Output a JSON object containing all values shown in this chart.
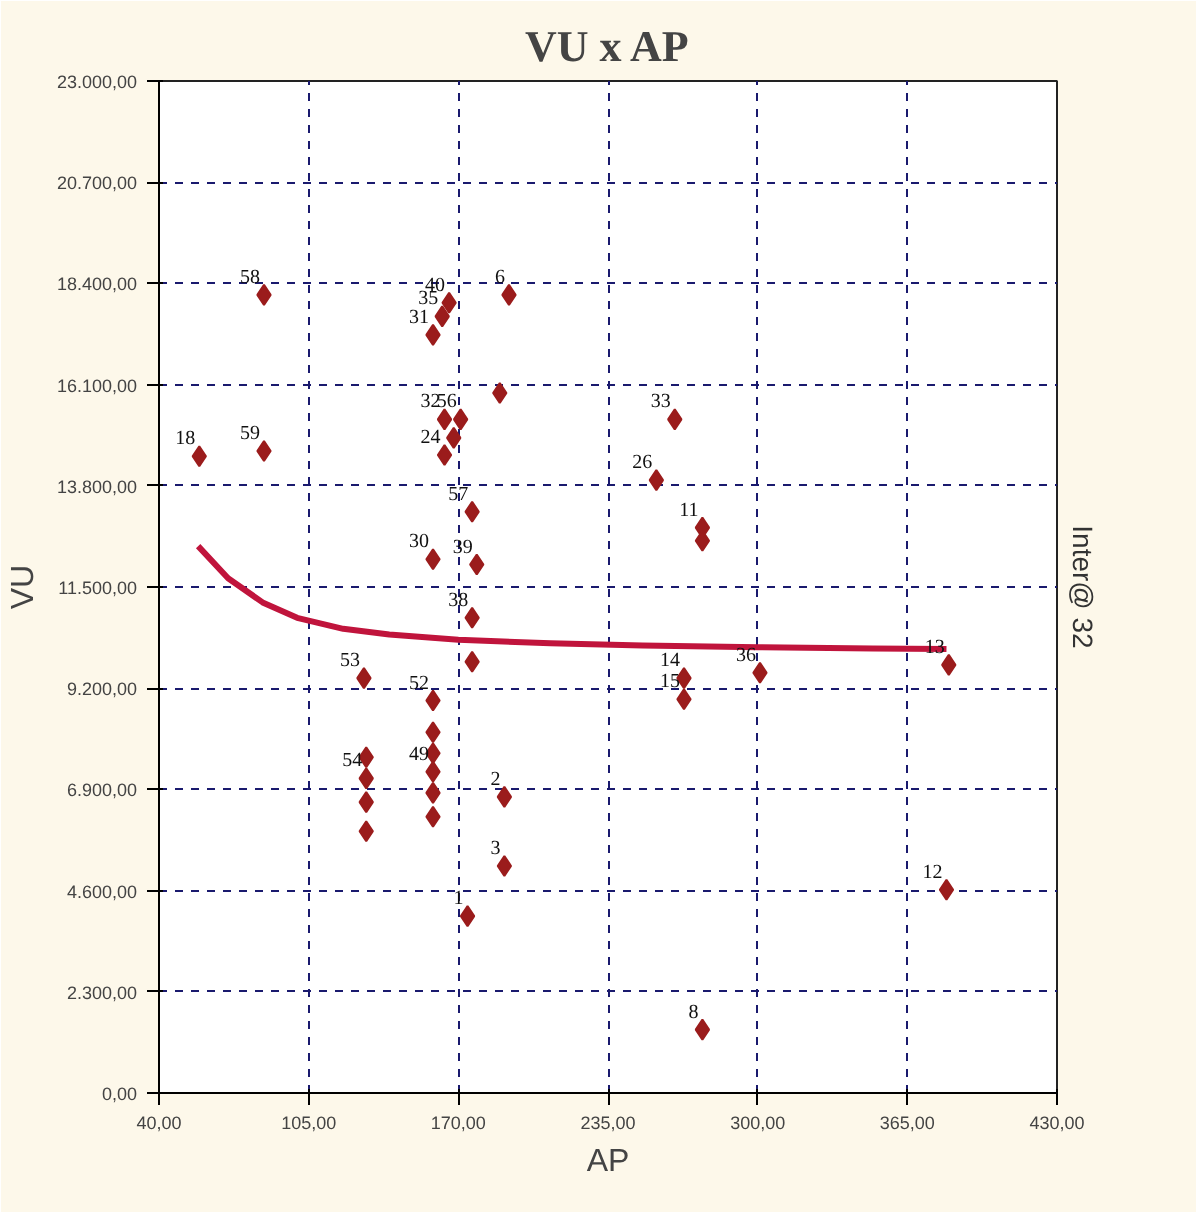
{
  "chart_data": {
    "type": "scatter",
    "title": "VU x AP",
    "xlabel": "AP",
    "ylabel": "VU",
    "xlim": [
      40,
      430
    ],
    "ylim": [
      0,
      23000
    ],
    "xticks": [
      {
        "value": 40,
        "label": "40,00"
      },
      {
        "value": 105,
        "label": "105,00"
      },
      {
        "value": 170,
        "label": "170,00"
      },
      {
        "value": 235,
        "label": "235,00"
      },
      {
        "value": 300,
        "label": "300,00"
      },
      {
        "value": 365,
        "label": "365,00"
      },
      {
        "value": 430,
        "label": "430,00"
      }
    ],
    "yticks": [
      {
        "value": 0,
        "label": "0,00"
      },
      {
        "value": 2300,
        "label": "2.300,00"
      },
      {
        "value": 4600,
        "label": "4.600,00"
      },
      {
        "value": 6900,
        "label": "6.900,00"
      },
      {
        "value": 9200,
        "label": "9.200,00"
      },
      {
        "value": 11500,
        "label": "11.500,00"
      },
      {
        "value": 13800,
        "label": "13.800,00"
      },
      {
        "value": 16100,
        "label": "16.100,00"
      },
      {
        "value": 18400,
        "label": "18.400,00"
      },
      {
        "value": 20700,
        "label": "20.700,00"
      },
      {
        "value": 23000,
        "label": "23.000,00"
      }
    ],
    "grid": true,
    "marker": "diamond",
    "series": [
      {
        "color": "#9b1c1c",
        "x": [
          57.5,
          85.6,
          85.6,
          192,
          166,
          163,
          159,
          188,
          164,
          171,
          168,
          164,
          176,
          159,
          178,
          176,
          176,
          129,
          159,
          159,
          159,
          159,
          159,
          159,
          130,
          130,
          130,
          130,
          190,
          190,
          174,
          264,
          256,
          276,
          276,
          268,
          268,
          301,
          383,
          382,
          276
        ],
        "values": [
          14470,
          14590,
          18140,
          18140,
          17960,
          17650,
          17230,
          15910,
          15310,
          15310,
          14890,
          14500,
          13210,
          12130,
          12010,
          10800,
          9800,
          9430,
          8920,
          8200,
          7720,
          7300,
          6820,
          6280,
          7630,
          7150,
          6610,
          5950,
          6730,
          5160,
          4020,
          15310,
          13930,
          12850,
          12550,
          9430,
          8950,
          9550,
          9730,
          4620,
          1440
        ]
      },
      {
        "type": "line",
        "marker": "none",
        "color": "#c0143c",
        "x": [
          57,
          70,
          85,
          100,
          120,
          140,
          170,
          210,
          250,
          300,
          350,
          382
        ],
        "values": [
          12430,
          11700,
          11150,
          10800,
          10550,
          10420,
          10300,
          10220,
          10170,
          10130,
          10100,
          10090
        ]
      }
    ],
    "annotations": [
      {
        "text": "18",
        "x": 57.5,
        "y": 14470
      },
      {
        "text": "59",
        "x": 85.6,
        "y": 14590
      },
      {
        "text": "58",
        "x": 85.6,
        "y": 18140
      },
      {
        "text": "6",
        "x": 192,
        "y": 18140
      },
      {
        "text": "40",
        "x": 166,
        "y": 17960
      },
      {
        "text": "35",
        "x": 163,
        "y": 17650
      },
      {
        "text": "31",
        "x": 159,
        "y": 17230
      },
      {
        "text": "56",
        "x": 171,
        "y": 15310
      },
      {
        "text": "32",
        "x": 164,
        "y": 15310
      },
      {
        "text": "24",
        "x": 164,
        "y": 14500
      },
      {
        "text": "57",
        "x": 176,
        "y": 13210
      },
      {
        "text": "30",
        "x": 159,
        "y": 12130
      },
      {
        "text": "39",
        "x": 178,
        "y": 12010
      },
      {
        "text": "38",
        "x": 176,
        "y": 10800
      },
      {
        "text": "53",
        "x": 129,
        "y": 9430
      },
      {
        "text": "52",
        "x": 159,
        "y": 8920
      },
      {
        "text": "49",
        "x": 159,
        "y": 7300
      },
      {
        "text": "54",
        "x": 130,
        "y": 7150
      },
      {
        "text": "2",
        "x": 190,
        "y": 6730
      },
      {
        "text": "3",
        "x": 190,
        "y": 5160
      },
      {
        "text": "1",
        "x": 174,
        "y": 4020
      },
      {
        "text": "33",
        "x": 264,
        "y": 15310
      },
      {
        "text": "26",
        "x": 256,
        "y": 13930
      },
      {
        "text": "11",
        "x": 276,
        "y": 12850
      },
      {
        "text": "14",
        "x": 268,
        "y": 9430
      },
      {
        "text": "15",
        "x": 268,
        "y": 8950
      },
      {
        "text": "36",
        "x": 301,
        "y": 9550
      },
      {
        "text": "13",
        "x": 383,
        "y": 9730
      },
      {
        "text": "12",
        "x": 382,
        "y": 4620
      },
      {
        "text": "8",
        "x": 276,
        "y": 1440
      },
      "Inter@ 32"
    ]
  }
}
